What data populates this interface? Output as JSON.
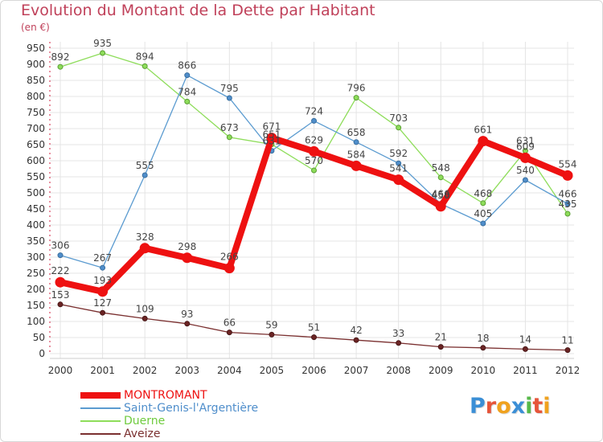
{
  "title": "Evolution du Montant de la Dette par Habitant",
  "subtitle": "(en €)",
  "logo": {
    "text": "Proxiti",
    "letter_colors": [
      "#3b8fd6",
      "#e6553a",
      "#f0a21e",
      "#3b8fd6",
      "#57b94a",
      "#e6553a",
      "#f0a21e"
    ]
  },
  "chart_data": {
    "type": "line",
    "title": "Evolution du Montant de la Dette par Habitant",
    "subtitle": "(en €)",
    "xlabel": "",
    "ylabel": "",
    "x": [
      "2000",
      "2001",
      "2002",
      "2003",
      "2004",
      "2005",
      "2006",
      "2007",
      "2008",
      "2009",
      "2010",
      "2011",
      "2012"
    ],
    "ylim": [
      0,
      950
    ],
    "yticks": [
      0,
      50,
      100,
      150,
      200,
      250,
      300,
      350,
      400,
      450,
      500,
      550,
      600,
      650,
      700,
      750,
      800,
      850,
      900,
      950
    ],
    "grid": true,
    "legend_position": "bottom-left",
    "series": [
      {
        "name": "MONTROMANT",
        "color": "#ee1111",
        "values": [
          222,
          193,
          328,
          298,
          266,
          671,
          629,
          584,
          541,
          458,
          661,
          609,
          554
        ]
      },
      {
        "name": "Saint-Genis-l'Argentière",
        "color": "#5b9bd0",
        "values": [
          306,
          267,
          555,
          866,
          795,
          631,
          724,
          658,
          592,
          466,
          405,
          540,
          466
        ]
      },
      {
        "name": "Duerne",
        "color": "#8edd5a",
        "values": [
          892,
          935,
          894,
          784,
          673,
          651,
          570,
          796,
          703,
          548,
          468,
          631,
          435
        ]
      },
      {
        "name": "Aveize",
        "color": "#7a2f2f",
        "values": [
          153,
          127,
          109,
          93,
          66,
          59,
          51,
          42,
          33,
          21,
          18,
          14,
          11
        ]
      }
    ]
  }
}
